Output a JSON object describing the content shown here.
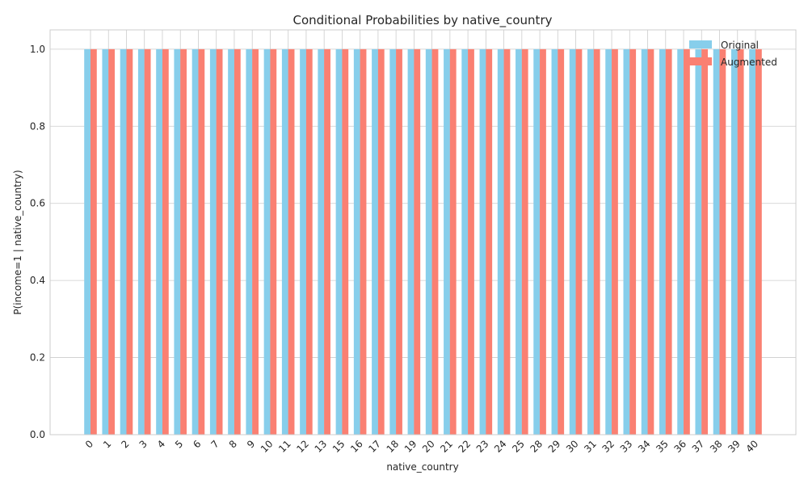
{
  "chart_data": {
    "type": "bar",
    "title": "Conditional Probabilities by native_country",
    "xlabel": "native_country",
    "ylabel": "P(income=1 | native_country)",
    "ylim": [
      0,
      1.05
    ],
    "yticks": [
      0.0,
      0.2,
      0.4,
      0.6,
      0.8,
      1.0
    ],
    "ytick_labels": [
      "0.0",
      "0.2",
      "0.4",
      "0.6",
      "0.8",
      "1.0"
    ],
    "grid": true,
    "legend_position": "top-right",
    "categories": [
      "0",
      "1",
      "2",
      "3",
      "4",
      "5",
      "6",
      "7",
      "8",
      "9",
      "10",
      "11",
      "12",
      "13",
      "15",
      "16",
      "17",
      "18",
      "19",
      "20",
      "21",
      "22",
      "23",
      "24",
      "25",
      "28",
      "29",
      "30",
      "31",
      "32",
      "33",
      "34",
      "35",
      "36",
      "37",
      "38",
      "39",
      "40"
    ],
    "series": [
      {
        "name": "Original",
        "color": "#87ceeb",
        "values": [
          1,
          1,
          1,
          1,
          1,
          1,
          1,
          1,
          1,
          1,
          1,
          1,
          1,
          1,
          1,
          1,
          1,
          1,
          1,
          1,
          1,
          1,
          1,
          1,
          1,
          1,
          1,
          1,
          1,
          1,
          1,
          1,
          1,
          1,
          1,
          1,
          1,
          1
        ]
      },
      {
        "name": "Augmented",
        "color": "#fa8072",
        "values": [
          1,
          1,
          1,
          1,
          1,
          1,
          1,
          1,
          1,
          1,
          1,
          1,
          1,
          1,
          1,
          1,
          1,
          1,
          1,
          1,
          1,
          1,
          1,
          1,
          1,
          1,
          1,
          1,
          1,
          1,
          1,
          1,
          1,
          1,
          1,
          1,
          1,
          1
        ]
      }
    ]
  }
}
